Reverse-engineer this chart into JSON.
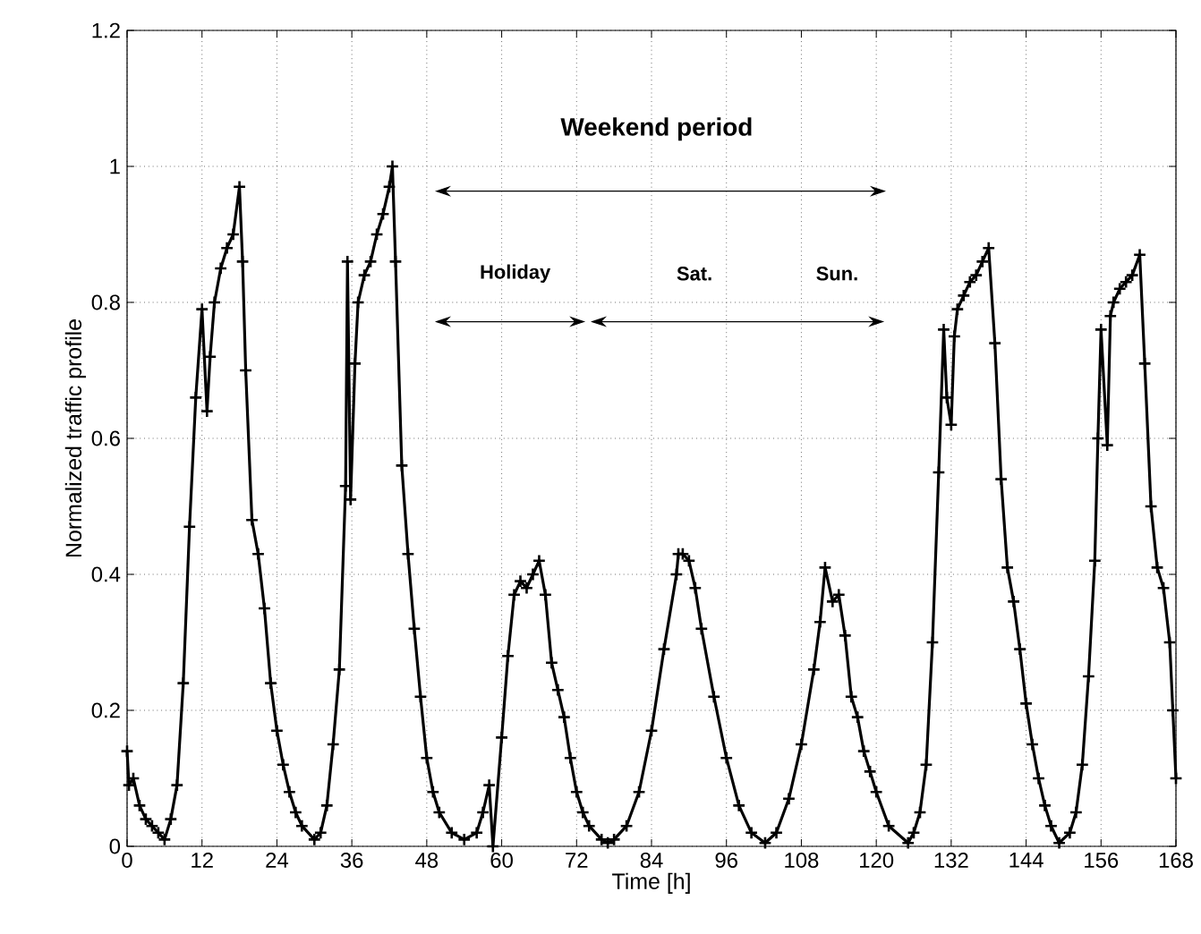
{
  "chart_data": {
    "type": "line",
    "xlabel": "Time [h]",
    "ylabel": "Normalized traffic profile",
    "xlim": [
      0,
      168
    ],
    "ylim": [
      0,
      1.2
    ],
    "xticks": [
      0,
      12,
      24,
      36,
      48,
      60,
      72,
      84,
      96,
      108,
      120,
      132,
      144,
      156,
      168
    ],
    "yticks": [
      0,
      0.2,
      0.4,
      0.6,
      0.8,
      1,
      1.2
    ],
    "grid": true,
    "marker": "cross",
    "line_style": "solid",
    "series": [
      {
        "color": "#000000",
        "x": [
          0,
          0.3,
          1,
          2,
          3,
          4,
          5,
          6,
          7,
          8,
          9,
          10,
          11,
          12,
          12.8,
          13.3,
          14,
          15,
          16,
          17,
          18,
          18.5,
          19,
          20,
          21,
          22,
          23,
          24,
          25,
          26,
          27,
          28,
          30,
          31,
          32,
          33,
          34,
          35,
          35.3,
          35.8,
          36.5,
          37,
          38,
          39,
          40,
          41,
          42,
          42.5,
          43,
          44,
          45,
          46,
          47,
          48,
          49,
          50,
          52,
          54,
          56,
          57,
          58,
          58.6,
          60,
          61,
          62,
          63,
          64,
          65,
          66,
          67,
          68,
          69,
          70,
          71,
          72,
          73,
          74,
          76,
          77,
          78,
          80,
          82,
          84,
          86,
          88,
          88.3,
          89,
          90,
          91,
          92,
          94,
          96,
          98,
          100,
          102.2,
          104,
          106,
          108,
          110,
          111,
          111.8,
          113,
          114,
          115,
          116,
          117,
          118,
          119,
          120,
          122,
          125.1,
          126,
          127,
          128,
          129,
          130,
          130.8,
          131.3,
          132,
          132.5,
          133,
          134,
          135,
          136,
          137,
          138,
          139,
          140,
          141,
          142,
          143,
          144,
          145,
          146,
          147,
          148,
          149.3,
          151,
          152,
          153,
          154,
          155,
          155.5,
          156,
          157,
          157.5,
          158,
          159,
          160,
          161,
          162.2,
          163,
          164,
          165,
          166,
          167,
          167.5,
          168
        ],
        "values": [
          0.14,
          0.09,
          0.1,
          0.06,
          0.04,
          0.03,
          0.02,
          0.01,
          0.04,
          0.09,
          0.24,
          0.47,
          0.66,
          0.79,
          0.64,
          0.72,
          0.8,
          0.85,
          0.88,
          0.9,
          0.97,
          0.86,
          0.7,
          0.48,
          0.43,
          0.35,
          0.24,
          0.17,
          0.12,
          0.08,
          0.05,
          0.03,
          0.01,
          0.02,
          0.06,
          0.15,
          0.26,
          0.53,
          0.86,
          0.51,
          0.71,
          0.8,
          0.84,
          0.86,
          0.9,
          0.93,
          0.97,
          1.0,
          0.86,
          0.56,
          0.43,
          0.32,
          0.22,
          0.13,
          0.08,
          0.05,
          0.02,
          0.01,
          0.02,
          0.05,
          0.09,
          0.0,
          0.16,
          0.28,
          0.37,
          0.39,
          0.38,
          0.4,
          0.42,
          0.37,
          0.27,
          0.23,
          0.19,
          0.13,
          0.08,
          0.05,
          0.03,
          0.01,
          0.005,
          0.01,
          0.03,
          0.08,
          0.17,
          0.29,
          0.4,
          0.43,
          0.43,
          0.42,
          0.38,
          0.32,
          0.22,
          0.13,
          0.06,
          0.02,
          0.005,
          0.02,
          0.07,
          0.15,
          0.26,
          0.33,
          0.41,
          0.36,
          0.37,
          0.31,
          0.22,
          0.19,
          0.14,
          0.11,
          0.08,
          0.03,
          0.005,
          0.02,
          0.05,
          0.12,
          0.3,
          0.55,
          0.76,
          0.66,
          0.62,
          0.75,
          0.79,
          0.81,
          0.83,
          0.84,
          0.86,
          0.88,
          0.74,
          0.54,
          0.41,
          0.36,
          0.29,
          0.21,
          0.15,
          0.1,
          0.06,
          0.03,
          0.005,
          0.02,
          0.05,
          0.12,
          0.25,
          0.42,
          0.6,
          0.76,
          0.59,
          0.78,
          0.8,
          0.82,
          0.83,
          0.84,
          0.87,
          0.71,
          0.5,
          0.41,
          0.38,
          0.3,
          0.2,
          0.1
        ]
      }
    ],
    "annotations": [
      "Weekend period",
      "Holiday",
      "Sat.",
      "Sun."
    ]
  }
}
